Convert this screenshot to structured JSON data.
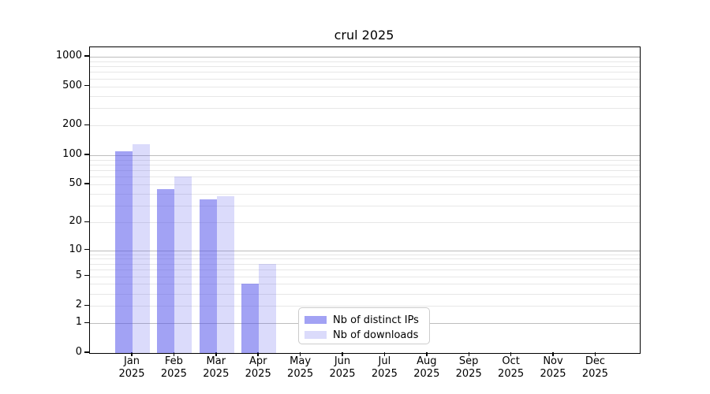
{
  "title": "crul 2025",
  "chart_data": {
    "type": "bar",
    "title": "crul 2025",
    "scale": "log1p",
    "grid": "horizontal",
    "legend_position": "lower center",
    "categories": [
      "Jan",
      "Feb",
      "Mar",
      "Apr",
      "May",
      "Jun",
      "Jul",
      "Aug",
      "Sep",
      "Oct",
      "Nov",
      "Dec"
    ],
    "category_year": "2025",
    "series": [
      {
        "name": "Nb of distinct IPs",
        "color": "rgba(85,85,235,0.55)",
        "color_hex_on_white": "#a1a1f6",
        "values": [
          110,
          45,
          35,
          4,
          0,
          0,
          0,
          0,
          0,
          0,
          0,
          0
        ]
      },
      {
        "name": "Nb of downloads",
        "color": "rgba(85,85,235,0.21)",
        "color_hex_on_white": "#dbdbfa",
        "values": [
          130,
          60,
          38,
          7,
          0,
          0,
          0,
          0,
          0,
          0,
          0,
          0
        ]
      }
    ],
    "y_ticks": [
      0,
      1,
      2,
      5,
      10,
      20,
      50,
      100,
      200,
      500,
      1000
    ],
    "y_major_gridlines": [
      1,
      10,
      100,
      1000
    ],
    "ylim": [
      0,
      1100
    ],
    "colors": {
      "grid_major": "#bdbdbd",
      "grid_minor": "#e7e7e7",
      "axis": "#000000"
    }
  }
}
